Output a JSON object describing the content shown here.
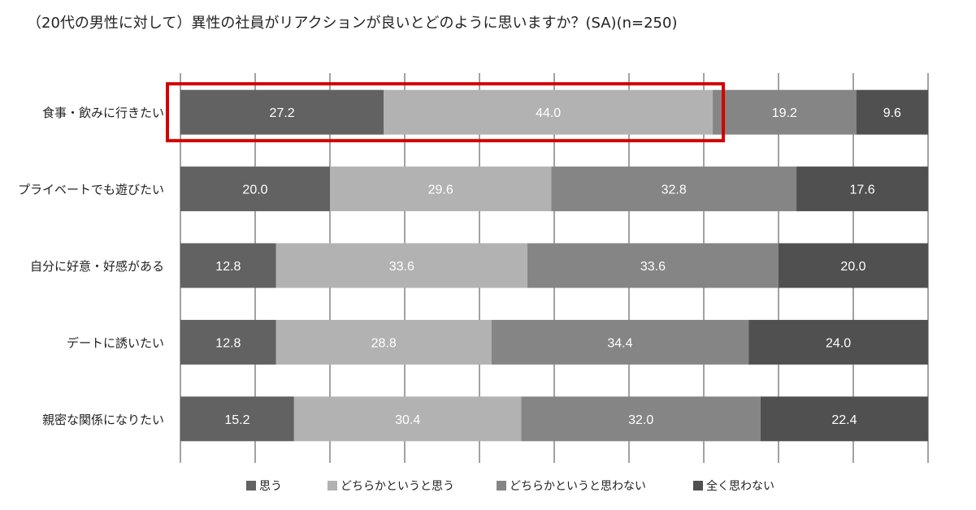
{
  "title": "（20代の男性に対して）異性の社員がリアクションが良いとどのように思いますか？(SA)(n=250)",
  "chart_data": {
    "type": "stacked-bar-horizontal",
    "categories": [
      "食事・飲みに行きたい",
      "プライベートでも遊びたい",
      "自分に好意・好感がある",
      "デートに誘いたい",
      "親密な関係になりたい"
    ],
    "series": [
      {
        "name": "思う",
        "color": "#626262",
        "values": [
          27.2,
          20.0,
          12.8,
          12.8,
          15.2
        ],
        "labels": [
          "27.2",
          "20.0",
          "12.8",
          "12.8",
          "15.2"
        ]
      },
      {
        "name": "どちらかというと思う",
        "color": "#b2b2b2",
        "values": [
          44.0,
          29.6,
          33.6,
          28.8,
          30.4
        ],
        "labels": [
          "44.0",
          "29.6",
          "33.6",
          "28.8",
          "30.4"
        ]
      },
      {
        "name": "どちらかというと思わない",
        "color": "#858585",
        "values": [
          19.2,
          32.8,
          33.6,
          34.4,
          32.0
        ],
        "labels": [
          "19.2",
          "32.8",
          "33.6",
          "34.4",
          "32.0"
        ]
      },
      {
        "name": "全く思わない",
        "color": "#505050",
        "values": [
          9.6,
          17.6,
          20.0,
          24.0,
          22.4
        ],
        "labels": [
          "9.6",
          "17.6",
          "20.0",
          "24.0",
          "22.4"
        ]
      }
    ],
    "xlim": [
      0,
      100
    ],
    "grid": true,
    "legend": "bottom",
    "highlight": {
      "category": "食事・飲みに行きたい",
      "series": [
        "思う",
        "どちらかというと思う"
      ],
      "color": "#d40000"
    }
  }
}
